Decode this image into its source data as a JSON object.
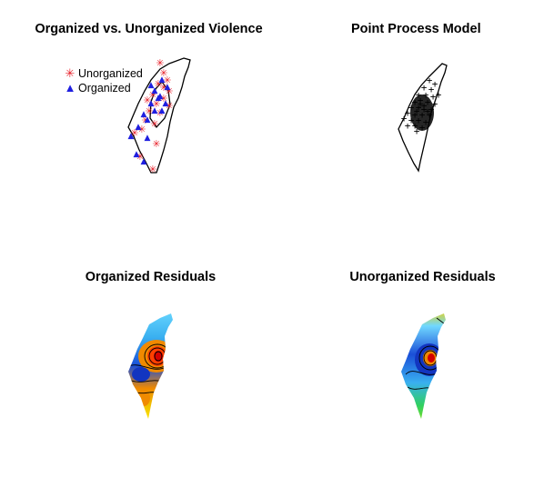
{
  "panels": [
    {
      "title": "Organized vs. Unorganized Violence"
    },
    {
      "title": "Point Process Model"
    },
    {
      "title": "Organized Residuals"
    },
    {
      "title": "Unorganized Residuals"
    }
  ],
  "legend": {
    "items": [
      {
        "label": "Unorganized",
        "symbol": "asterisk",
        "color": "#e8202a"
      },
      {
        "label": "Organized",
        "symbol": "triangle",
        "color": "#1f1fe0"
      }
    ]
  },
  "colors": {
    "unorganized": "#e8202a",
    "organized": "#1f1fe0",
    "outline": "#000000"
  }
}
